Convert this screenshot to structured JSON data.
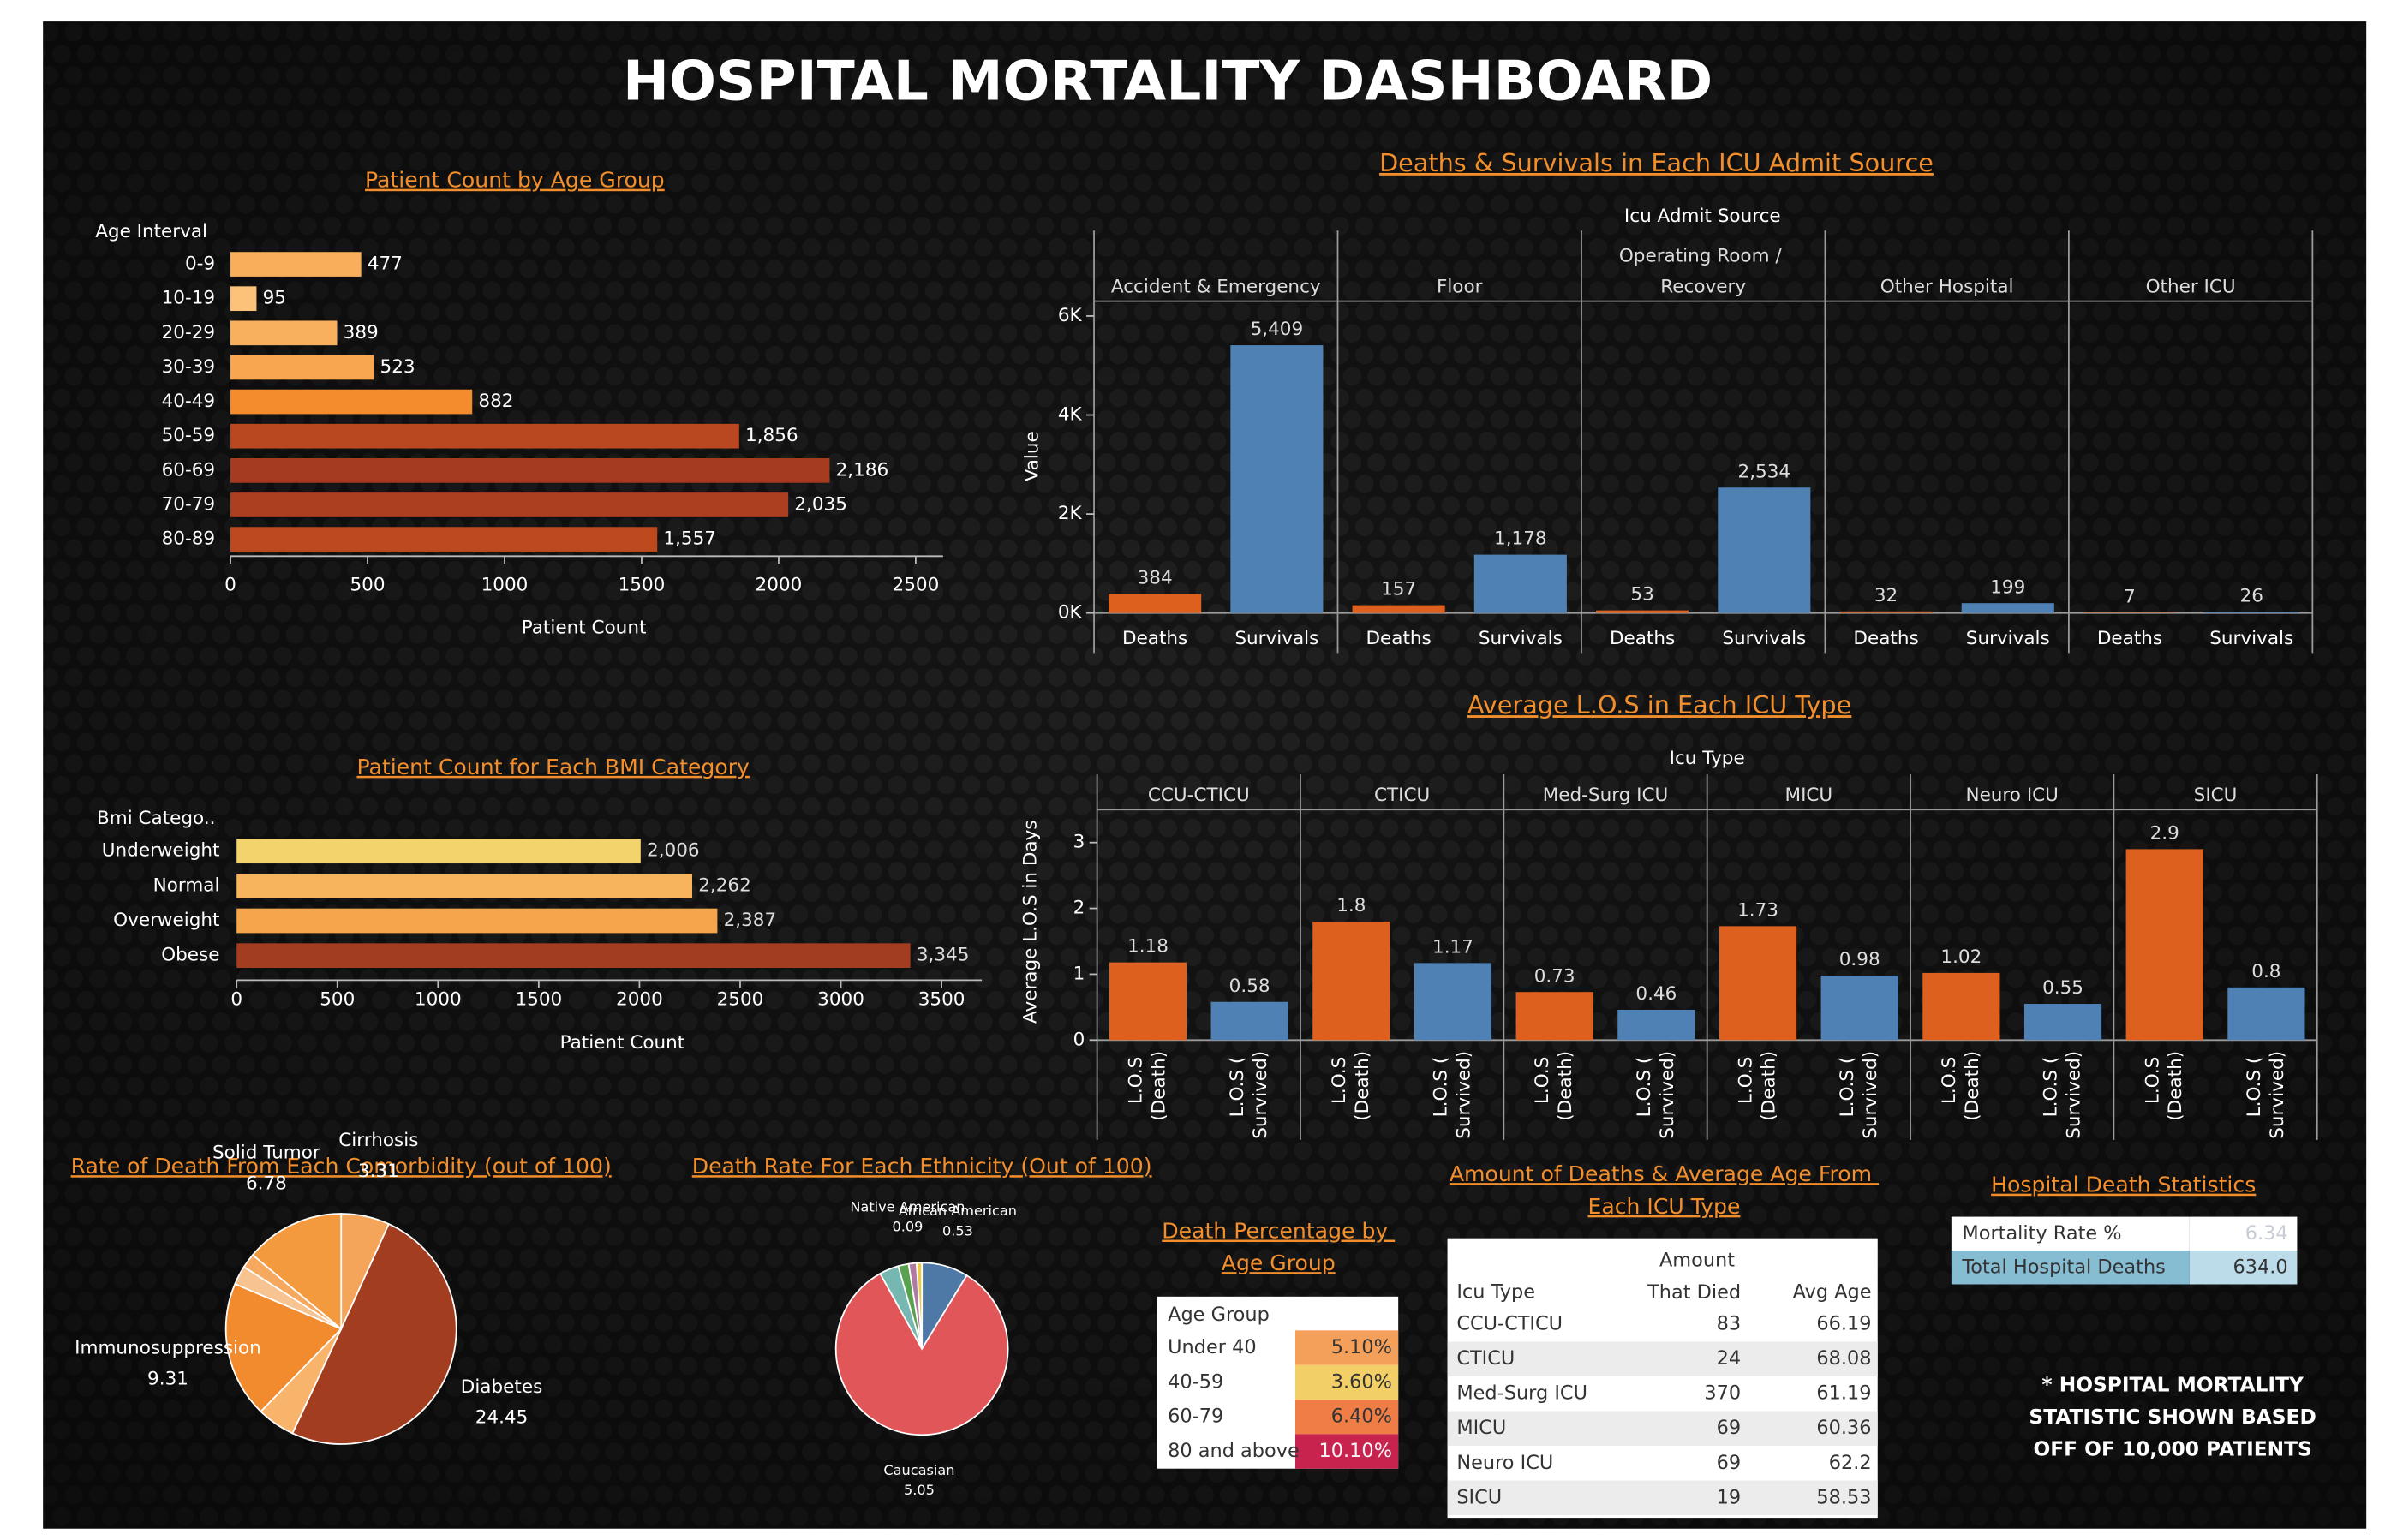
{
  "title": "HOSPITAL MORTALITY DASHBOARD",
  "note": [
    "* HOSPITAL MORTALITY",
    "STATISTIC SHOWN BASED",
    "OFF OF 10,000 PATIENTS"
  ],
  "chart_data": [
    {
      "type": "hbar",
      "title": "Patient Count by Age Group",
      "y_label": "Age Interval",
      "x_label": "Patient Count",
      "categories": [
        "0-9",
        "10-19",
        "20-29",
        "30-39",
        "40-49",
        "50-59",
        "60-69",
        "70-79",
        "80-89"
      ],
      "values": [
        477,
        95,
        389,
        523,
        882,
        1856,
        2186,
        2035,
        1557
      ],
      "value_labels": [
        "477",
        "95",
        "389",
        "523",
        "882",
        "1,856",
        "2,186",
        "2,035",
        "1,557"
      ],
      "colors": [
        "#f9ae5b",
        "#fcc27a",
        "#f9b05e",
        "#f8a650",
        "#f48c2d",
        "#b9471f",
        "#a63c1f",
        "#ab3f1f",
        "#bd4a1f"
      ],
      "xlim": [
        0,
        2600
      ],
      "xticks": [
        0,
        500,
        1000,
        1500,
        2000,
        2500
      ]
    },
    {
      "type": "facet_bar",
      "title": "Deaths & Survivals in Each ICU Admit Source",
      "facet_label": "Icu Admit Source",
      "y_label": "Value",
      "categories": [
        "Accident & Emergency",
        "Floor",
        "Operating Room / Recovery",
        "Other Hospital",
        "Other ICU"
      ],
      "series": [
        {
          "name": "Deaths",
          "color": "#dd601e",
          "values": [
            384,
            157,
            53,
            32,
            7
          ],
          "value_labels": [
            "384",
            "157",
            "53",
            "32",
            "7"
          ]
        },
        {
          "name": "Survivals",
          "color": "#4f81b5",
          "values": [
            5409,
            1178,
            2534,
            199,
            26
          ],
          "value_labels": [
            "5,409",
            "1,178",
            "2,534",
            "199",
            "26"
          ]
        }
      ],
      "ylim": [
        0,
        6300
      ],
      "yticks": [
        {
          "value": 0,
          "label": "0K"
        },
        {
          "value": 2000,
          "label": "2K"
        },
        {
          "value": 4000,
          "label": "4K"
        },
        {
          "value": 6000,
          "label": "6K"
        }
      ]
    },
    {
      "type": "hbar",
      "title": "Patient Count for Each BMI Category",
      "y_label": "Bmi Catego..",
      "x_label": "Patient Count",
      "categories": [
        "Underweight",
        "Normal",
        "Overweight",
        "Obese"
      ],
      "values": [
        2006,
        2262,
        2387,
        3345
      ],
      "value_labels": [
        "2,006",
        "2,262",
        "2,387",
        "3,345"
      ],
      "colors": [
        "#f3d36b",
        "#f7b45c",
        "#f6a54b",
        "#a33d1f"
      ],
      "xlim": [
        0,
        3700
      ],
      "xticks": [
        0,
        500,
        1000,
        1500,
        2000,
        2500,
        3000,
        3500
      ]
    },
    {
      "type": "facet_bar",
      "title": "Average L.O.S in Each ICU Type",
      "facet_label": "Icu Type",
      "y_label": "Average L.O.S in Days",
      "categories": [
        "CCU-CTICU",
        "CTICU",
        "Med-Surg ICU",
        "MICU",
        "Neuro ICU",
        "SICU"
      ],
      "series": [
        {
          "name": "L.O.S (Death)",
          "color": "#dd601e",
          "values": [
            1.18,
            1.8,
            0.73,
            1.73,
            1.02,
            2.9
          ]
        },
        {
          "name": "L.O.S ( Survived)",
          "color": "#4f81b5",
          "values": [
            0.58,
            1.17,
            0.46,
            0.98,
            0.55,
            0.8
          ]
        }
      ],
      "ylim": [
        0,
        3.5
      ],
      "yticks": [
        0,
        1,
        2,
        3
      ]
    },
    {
      "type": "pie",
      "title": "Rate of Death From Each Comorbidity (out of 100)",
      "categories": [
        "Cirrhosis",
        "Diabetes",
        null,
        "Immunosuppression",
        null,
        null,
        "Solid Tumor"
      ],
      "values": [
        3.31,
        24.45,
        2.6,
        9.31,
        1.3,
        1.0,
        6.78
      ],
      "colors": [
        "#f5a55a",
        "#a33d1f",
        "#f9b46c",
        "#f28a2e",
        "#f7c391",
        "#f5a85e",
        "#f39a3f"
      ]
    },
    {
      "type": "pie",
      "title": "Death Rate For Each Ethnicity (Out of 100)",
      "categories": [
        "African American",
        "Caucasian",
        null,
        null,
        "Native American",
        null
      ],
      "values": [
        0.53,
        5.05,
        0.22,
        0.12,
        0.09,
        0.06
      ],
      "colors": [
        "#4e79a7",
        "#e15759",
        "#76b7b2",
        "#59a14f",
        "#b07aa1",
        "#edc948"
      ]
    },
    {
      "type": "table",
      "title": "Death Percentage by Age Group",
      "columns": [
        "Age Group"
      ],
      "rows": [
        [
          "Under 40",
          "5.10%"
        ],
        [
          "40-59",
          "3.60%"
        ],
        [
          "60-79",
          "6.40%"
        ],
        [
          "80 and above",
          "10.10%"
        ]
      ],
      "colors": [
        "#f5a05a",
        "#f3d067",
        "#ef7d45",
        "#c8234f"
      ]
    },
    {
      "type": "table",
      "title": "Amount of Deaths & Average Age From Each ICU Type",
      "columns": [
        "Icu Type",
        "Amount That Died",
        "Avg Age"
      ],
      "rows": [
        [
          "CCU-CTICU",
          "83",
          "66.19"
        ],
        [
          "CTICU",
          "24",
          "68.08"
        ],
        [
          "Med-Surg ICU",
          "370",
          "61.19"
        ],
        [
          "MICU",
          "69",
          "60.36"
        ],
        [
          "Neuro ICU",
          "69",
          "62.2"
        ],
        [
          "SICU",
          "19",
          "58.53"
        ]
      ]
    },
    {
      "type": "table",
      "title": "Hospital Death Statistics",
      "rows": [
        [
          "Mortality Rate %",
          "6.34"
        ],
        [
          "Total Hospital Deaths",
          "634.0"
        ]
      ]
    }
  ]
}
